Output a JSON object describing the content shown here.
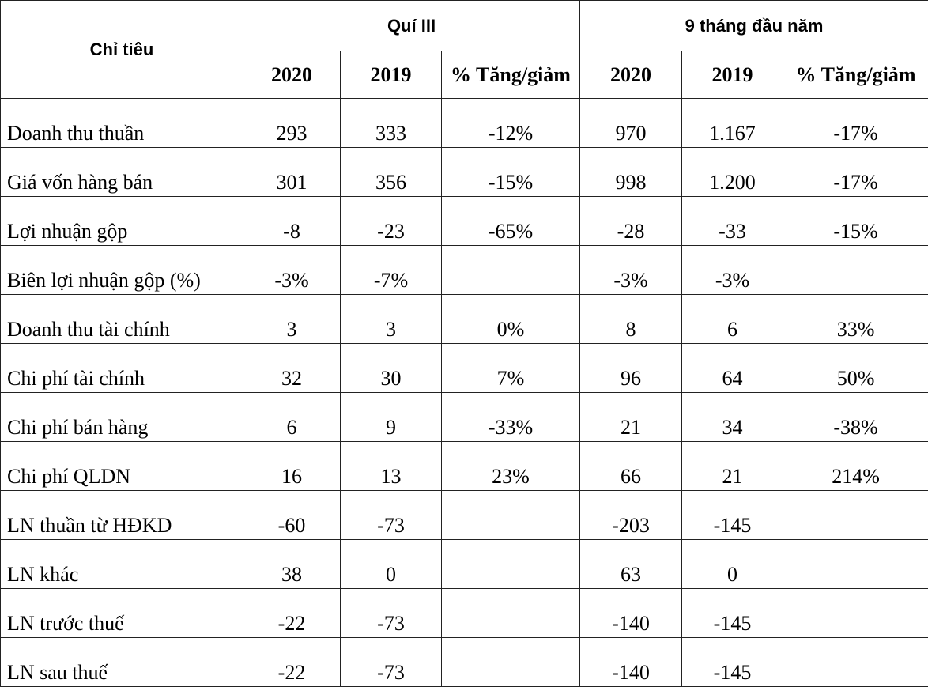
{
  "table": {
    "header": {
      "label": "Chỉ tiêu",
      "groups": [
        "Quí III",
        "9 tháng đầu năm"
      ],
      "columns": [
        "2020",
        "2019",
        "% Tăng/giảm",
        "2020",
        "2019",
        "% Tăng/giảm"
      ]
    },
    "rows": [
      [
        "Doanh thu thuần",
        "293",
        "333",
        "-12%",
        "970",
        "1.167",
        "-17%"
      ],
      [
        "Giá vốn hàng bán",
        "301",
        "356",
        "-15%",
        "998",
        "1.200",
        "-17%"
      ],
      [
        "Lợi nhuận gộp",
        "-8",
        "-23",
        "-65%",
        "-28",
        "-33",
        "-15%"
      ],
      [
        "Biên lợi nhuận gộp (%)",
        "-3%",
        "-7%",
        null,
        "-3%",
        "-3%",
        null
      ],
      [
        "Doanh thu tài chính",
        "3",
        "3",
        "0%",
        "8",
        "6",
        "33%"
      ],
      [
        "Chi phí tài chính",
        "32",
        "30",
        "7%",
        "96",
        "64",
        "50%"
      ],
      [
        "Chi phí bán hàng",
        "6",
        "9",
        "-33%",
        "21",
        "34",
        "-38%"
      ],
      [
        "Chi phí QLDN",
        "16",
        "13",
        "23%",
        "66",
        "21",
        "214%"
      ],
      [
        "LN thuần từ HĐKD",
        "-60",
        "-73",
        null,
        "-203",
        "-145",
        null
      ],
      [
        "LN khác",
        "38",
        "0",
        null,
        "63",
        "0",
        null
      ],
      [
        "LN trước thuế",
        "-22",
        "-73",
        null,
        "-140",
        "-145",
        null
      ],
      [
        "LN sau thuế",
        "-22",
        "-73",
        null,
        "-140",
        "-145",
        null
      ]
    ]
  }
}
